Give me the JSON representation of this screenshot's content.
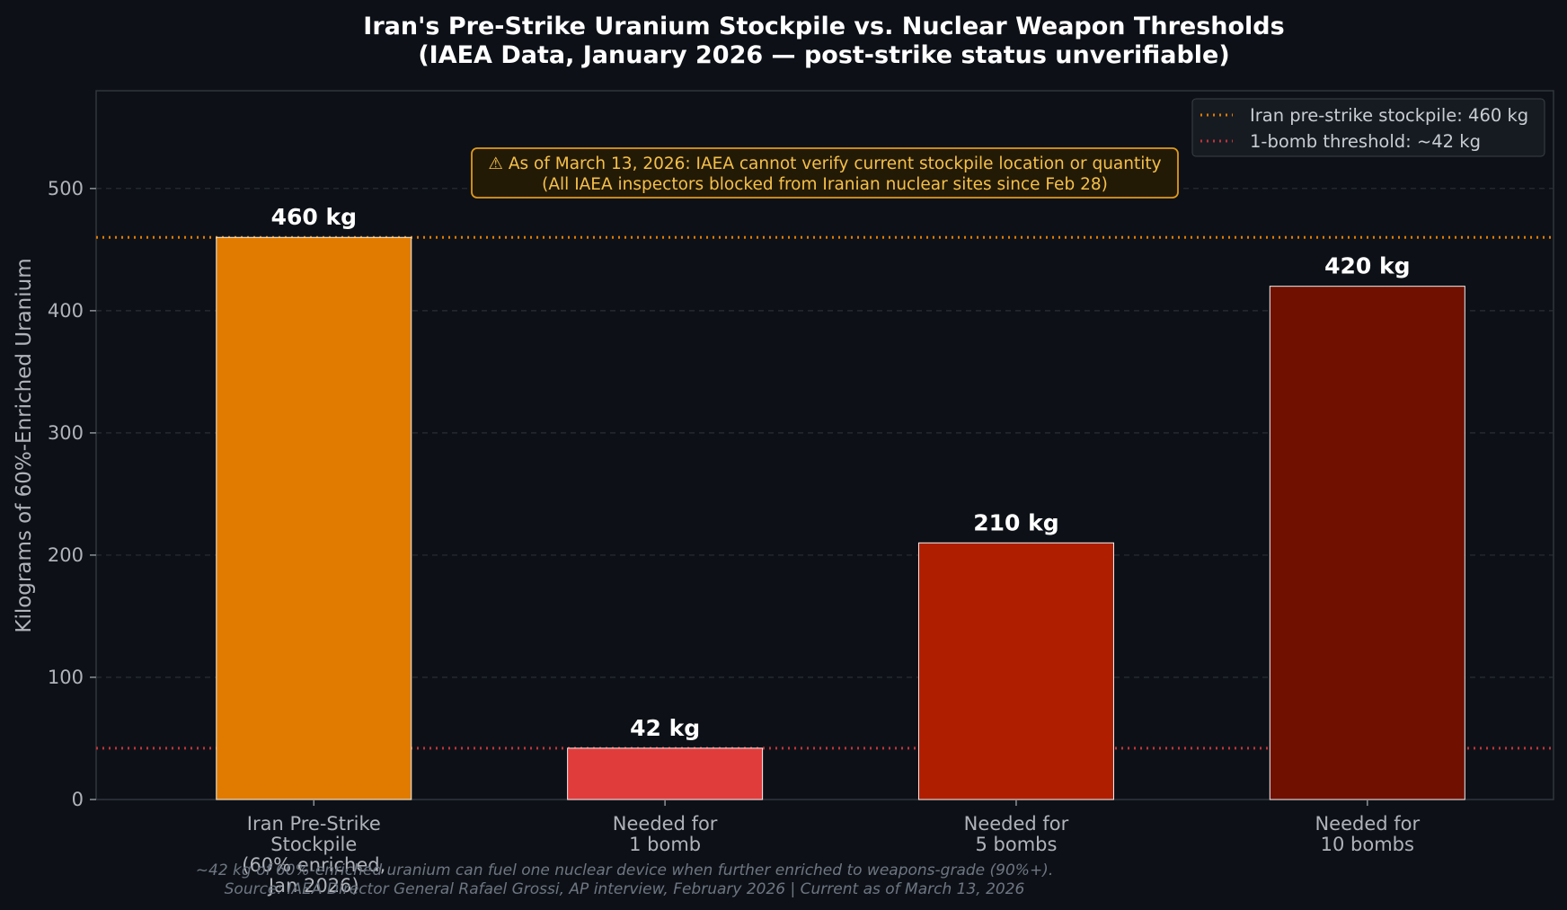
{
  "chart_data": {
    "type": "bar",
    "title": "Iran's Pre-Strike Uranium Stockpile vs. Nuclear Weapon Thresholds",
    "subtitle": "(IAEA Data, January 2026 — post-strike status unverifiable)",
    "ylabel": "Kilograms of 60%-Enriched Uranium",
    "xlabel": "",
    "ylim": [
      0,
      580
    ],
    "yticks": [
      0,
      100,
      200,
      300,
      400,
      500
    ],
    "grid": "horizontal dashed",
    "legend_position": "top-right",
    "categories": [
      [
        "Iran Pre-Strike",
        "Stockpile",
        "(60% enriched,",
        "Jan 2026)"
      ],
      [
        "Needed for",
        "1 bomb"
      ],
      [
        "Needed for",
        "5 bombs"
      ],
      [
        "Needed for",
        "10 bombs"
      ]
    ],
    "values": [
      460,
      42,
      210,
      420
    ],
    "value_labels": [
      "460 kg",
      "42 kg",
      "210 kg",
      "420 kg"
    ],
    "bar_colors": [
      "#e07b00",
      "#e03c3c",
      "#b01e00",
      "#701000"
    ],
    "reference_lines": [
      {
        "value": 460,
        "label": "Iran pre-strike stockpile: 460 kg",
        "color": "#e07b00"
      },
      {
        "value": 42,
        "label": "1-bomb threshold: ~42 kg",
        "color": "#c0333a"
      }
    ],
    "annotation": {
      "lines": [
        "⚠  As of March 13, 2026: IAEA cannot verify current stockpile location or quantity",
        "(All IAEA inspectors blocked from Iranian nuclear sites since Feb 28)"
      ],
      "color": "#f5c04a",
      "border_color": "#e09a1a",
      "background": "#231a06"
    },
    "footnote": [
      "~42 kg of 60%-enriched uranium can fuel one nuclear device when further enriched to weapons-grade (90%+).",
      "Source: IAEA Director General Rafael Grossi, AP interview, February 2026   |   Current as of March 13, 2026"
    ]
  }
}
